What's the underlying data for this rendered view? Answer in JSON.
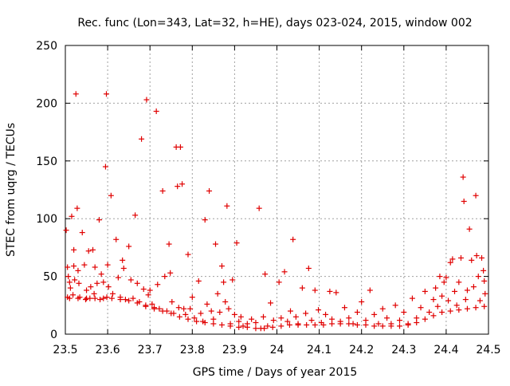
{
  "chart_data": {
    "type": "scatter",
    "title": "Rec. func (Lon=343, Lat=32, h=HE), days 023-024, 2015, window 002",
    "xlabel": "GPS time / Days of year 2015",
    "ylabel": "STEC from uqrg / TECUs",
    "xlim": [
      23.5,
      24.5
    ],
    "ylim": [
      0,
      250
    ],
    "xticks": [
      23.5,
      23.6,
      23.7,
      23.8,
      23.9,
      24.0,
      24.1,
      24.2,
      24.3,
      24.4,
      24.5
    ],
    "xtick_labels": [
      "23.5",
      "23.6",
      "23.7",
      "23.8",
      "23.9",
      "24",
      "24.1",
      "24.2",
      "24.3",
      "24.4",
      "24.5"
    ],
    "yticks": [
      0,
      50,
      100,
      150,
      200,
      250
    ],
    "ytick_labels": [
      "0",
      "50",
      "100",
      "150",
      "200",
      "250"
    ],
    "grid": true,
    "marker": "+",
    "marker_color": "#e00000",
    "series": [
      {
        "name": "STEC",
        "points": [
          [
            23.502,
            90
          ],
          [
            23.505,
            58
          ],
          [
            23.507,
            50
          ],
          [
            23.51,
            45
          ],
          [
            23.512,
            40
          ],
          [
            23.505,
            32
          ],
          [
            23.515,
            102
          ],
          [
            23.52,
            73
          ],
          [
            23.525,
            208
          ],
          [
            23.52,
            59
          ],
          [
            23.522,
            47
          ],
          [
            23.518,
            34
          ],
          [
            23.528,
            109
          ],
          [
            23.53,
            55
          ],
          [
            23.532,
            44
          ],
          [
            23.534,
            32
          ],
          [
            23.54,
            88
          ],
          [
            23.545,
            60
          ],
          [
            23.55,
            38
          ],
          [
            23.548,
            30
          ],
          [
            23.555,
            72
          ],
          [
            23.56,
            41
          ],
          [
            23.558,
            31
          ],
          [
            23.565,
            73
          ],
          [
            23.57,
            58
          ],
          [
            23.568,
            35
          ],
          [
            23.575,
            44
          ],
          [
            23.58,
            99
          ],
          [
            23.585,
            52
          ],
          [
            23.582,
            30
          ],
          [
            23.59,
            45
          ],
          [
            23.595,
            145
          ],
          [
            23.597,
            208
          ],
          [
            23.6,
            60
          ],
          [
            23.602,
            41
          ],
          [
            23.598,
            32
          ],
          [
            23.608,
            120
          ],
          [
            23.612,
            35
          ],
          [
            23.62,
            82
          ],
          [
            23.625,
            49
          ],
          [
            23.63,
            32
          ],
          [
            23.635,
            64
          ],
          [
            23.638,
            57
          ],
          [
            23.642,
            30
          ],
          [
            23.65,
            76
          ],
          [
            23.655,
            47
          ],
          [
            23.66,
            31
          ],
          [
            23.665,
            103
          ],
          [
            23.67,
            44
          ],
          [
            23.675,
            28
          ],
          [
            23.68,
            169
          ],
          [
            23.685,
            39
          ],
          [
            23.69,
            24
          ],
          [
            23.692,
            203
          ],
          [
            23.696,
            34
          ],
          [
            23.7,
            38
          ],
          [
            23.705,
            26
          ],
          [
            23.71,
            23
          ],
          [
            23.715,
            193
          ],
          [
            23.718,
            43
          ],
          [
            23.722,
            22
          ],
          [
            23.73,
            124
          ],
          [
            23.735,
            50
          ],
          [
            23.74,
            20
          ],
          [
            23.745,
            78
          ],
          [
            23.748,
            53
          ],
          [
            23.752,
            28
          ],
          [
            23.756,
            18
          ],
          [
            23.762,
            162
          ],
          [
            23.765,
            128
          ],
          [
            23.768,
            23
          ],
          [
            23.772,
            162
          ],
          [
            23.776,
            130
          ],
          [
            23.78,
            22
          ],
          [
            23.784,
            17
          ],
          [
            23.79,
            69
          ],
          [
            23.795,
            22
          ],
          [
            23.8,
            32
          ],
          [
            23.805,
            14
          ],
          [
            23.815,
            46
          ],
          [
            23.82,
            18
          ],
          [
            23.825,
            11
          ],
          [
            23.83,
            99
          ],
          [
            23.835,
            26
          ],
          [
            23.84,
            124
          ],
          [
            23.845,
            20
          ],
          [
            23.85,
            13
          ],
          [
            23.855,
            78
          ],
          [
            23.86,
            35
          ],
          [
            23.865,
            19
          ],
          [
            23.87,
            59
          ],
          [
            23.874,
            45
          ],
          [
            23.878,
            28
          ],
          [
            23.882,
            111
          ],
          [
            23.886,
            22
          ],
          [
            23.89,
            9
          ],
          [
            23.895,
            47
          ],
          [
            23.9,
            17
          ],
          [
            23.905,
            79
          ],
          [
            23.91,
            11
          ],
          [
            23.915,
            15
          ],
          [
            23.92,
            7
          ],
          [
            23.93,
            9
          ],
          [
            23.94,
            13
          ],
          [
            23.95,
            10
          ],
          [
            23.958,
            109
          ],
          [
            23.962,
            5
          ],
          [
            23.968,
            15
          ],
          [
            23.972,
            52
          ],
          [
            23.978,
            7
          ],
          [
            23.985,
            27
          ],
          [
            23.992,
            12
          ],
          [
            24.005,
            45
          ],
          [
            24.01,
            14
          ],
          [
            24.018,
            54
          ],
          [
            24.025,
            11
          ],
          [
            24.032,
            20
          ],
          [
            24.038,
            82
          ],
          [
            24.045,
            15
          ],
          [
            24.05,
            9
          ],
          [
            24.06,
            40
          ],
          [
            24.068,
            18
          ],
          [
            24.075,
            57
          ],
          [
            24.082,
            12
          ],
          [
            24.09,
            38
          ],
          [
            24.098,
            21
          ],
          [
            24.105,
            10
          ],
          [
            24.115,
            17
          ],
          [
            24.125,
            37
          ],
          [
            24.13,
            13
          ],
          [
            24.14,
            36
          ],
          [
            24.15,
            11
          ],
          [
            24.16,
            23
          ],
          [
            24.17,
            14
          ],
          [
            24.18,
            9
          ],
          [
            24.19,
            19
          ],
          [
            24.2,
            28
          ],
          [
            24.21,
            12
          ],
          [
            24.22,
            38
          ],
          [
            24.23,
            17
          ],
          [
            24.24,
            9
          ],
          [
            24.25,
            22
          ],
          [
            24.26,
            14
          ],
          [
            24.27,
            9
          ],
          [
            24.28,
            25
          ],
          [
            24.29,
            12
          ],
          [
            24.3,
            19
          ],
          [
            24.31,
            9
          ],
          [
            24.32,
            31
          ],
          [
            24.33,
            14
          ],
          [
            24.34,
            23
          ],
          [
            24.35,
            37
          ],
          [
            24.36,
            19
          ],
          [
            24.37,
            30
          ],
          [
            24.375,
            40
          ],
          [
            24.38,
            24
          ],
          [
            24.385,
            50
          ],
          [
            24.39,
            33
          ],
          [
            24.395,
            45
          ],
          [
            24.4,
            49
          ],
          [
            24.405,
            29
          ],
          [
            24.41,
            62
          ],
          [
            24.415,
            65
          ],
          [
            24.42,
            37
          ],
          [
            24.425,
            25
          ],
          [
            24.43,
            45
          ],
          [
            24.435,
            66
          ],
          [
            24.44,
            136
          ],
          [
            24.442,
            115
          ],
          [
            24.446,
            30
          ],
          [
            24.45,
            38
          ],
          [
            24.455,
            91
          ],
          [
            24.46,
            64
          ],
          [
            24.465,
            41
          ],
          [
            24.47,
            120
          ],
          [
            24.472,
            68
          ],
          [
            24.476,
            50
          ],
          [
            24.48,
            29
          ],
          [
            24.484,
            66
          ],
          [
            24.488,
            55
          ],
          [
            24.49,
            46
          ],
          [
            24.492,
            35
          ],
          [
            23.51,
            31
          ],
          [
            23.53,
            31
          ],
          [
            23.55,
            31
          ],
          [
            23.57,
            31
          ],
          [
            23.59,
            31
          ],
          [
            23.61,
            31
          ],
          [
            23.63,
            30
          ],
          [
            23.65,
            29
          ],
          [
            23.67,
            27
          ],
          [
            23.69,
            25
          ],
          [
            23.71,
            22
          ],
          [
            23.73,
            20
          ],
          [
            23.75,
            18
          ],
          [
            23.77,
            15
          ],
          [
            23.79,
            13
          ],
          [
            23.81,
            11
          ],
          [
            23.83,
            10
          ],
          [
            23.85,
            9
          ],
          [
            23.87,
            8
          ],
          [
            23.89,
            7
          ],
          [
            23.91,
            6
          ],
          [
            23.93,
            6
          ],
          [
            23.95,
            5
          ],
          [
            23.97,
            5
          ],
          [
            23.99,
            6
          ],
          [
            24.01,
            7
          ],
          [
            24.03,
            8
          ],
          [
            24.05,
            8
          ],
          [
            24.07,
            8
          ],
          [
            24.09,
            8
          ],
          [
            24.11,
            8
          ],
          [
            24.13,
            9
          ],
          [
            24.15,
            9
          ],
          [
            24.17,
            9
          ],
          [
            24.19,
            8
          ],
          [
            24.21,
            8
          ],
          [
            24.23,
            7
          ],
          [
            24.25,
            7
          ],
          [
            24.27,
            7
          ],
          [
            24.29,
            7
          ],
          [
            24.31,
            8
          ],
          [
            24.33,
            10
          ],
          [
            24.35,
            13
          ],
          [
            24.37,
            16
          ],
          [
            24.39,
            19
          ],
          [
            24.41,
            20
          ],
          [
            24.43,
            21
          ],
          [
            24.45,
            22
          ],
          [
            24.47,
            23
          ],
          [
            24.49,
            24
          ]
        ]
      }
    ]
  }
}
